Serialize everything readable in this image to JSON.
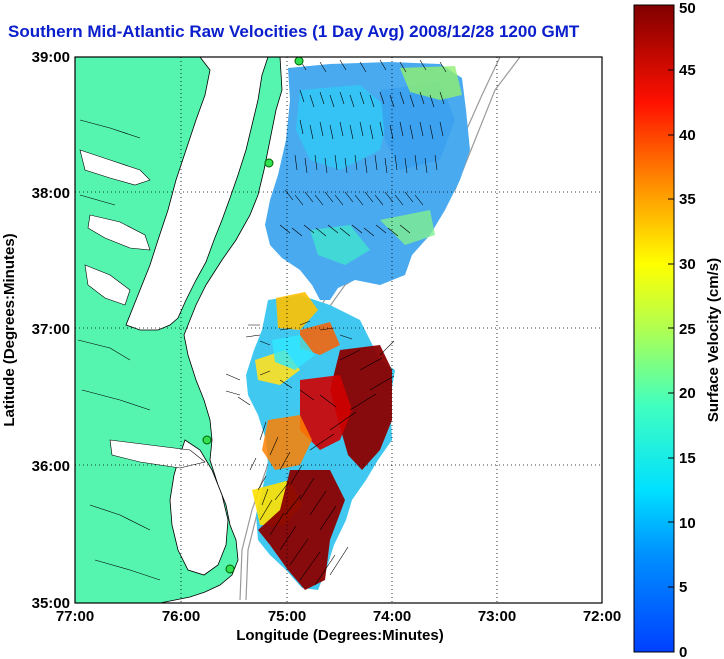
{
  "title": "Southern Mid-Atlantic Raw Velocities (1 Day Avg) 2008/12/28 1200 GMT",
  "map": {
    "x_axis": {
      "label": "Longitude (Degrees:Minutes)",
      "ticks": [
        "77:00",
        "76:00",
        "75:00",
        "74:00",
        "73:00",
        "72:00"
      ]
    },
    "y_axis": {
      "label": "Latitude (Degrees:Minutes)",
      "ticks": [
        "39:00",
        "38:00",
        "37:00",
        "36:00",
        "35:00"
      ]
    },
    "grid": "dotted",
    "land_color": "#55f5b0",
    "water_color": "#ffffff"
  },
  "colorbar": {
    "label": "Surface Velocity (cm/s)",
    "ticks": [
      "0",
      "5",
      "10",
      "15",
      "20",
      "25",
      "30",
      "35",
      "40",
      "45",
      "50"
    ],
    "min": 0,
    "max": 50,
    "colormap": "jet"
  }
}
